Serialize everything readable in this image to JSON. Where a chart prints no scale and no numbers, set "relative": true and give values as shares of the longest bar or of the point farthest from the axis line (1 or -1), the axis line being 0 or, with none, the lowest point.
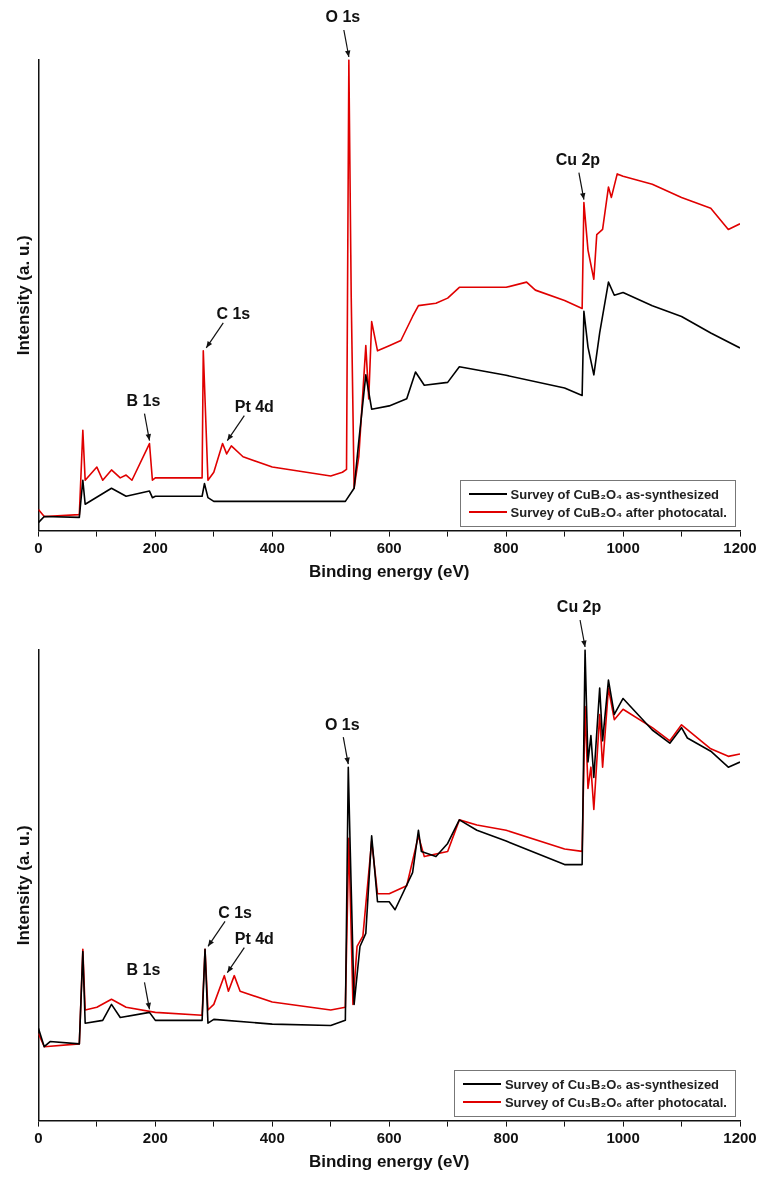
{
  "chart_data": [
    {
      "type": "line",
      "relative": true,
      "xlabel": "Binding energy (eV)",
      "ylabel": "Intensity (a. u.)",
      "xlim": [
        0,
        1200
      ],
      "xticks": [
        0,
        {
          "value": 100,
          "label": null
        },
        200,
        {
          "value": 300,
          "label": null
        },
        400,
        {
          "value": 500,
          "label": null
        },
        600,
        {
          "value": 700,
          "label": null
        },
        800,
        {
          "value": 900,
          "label": null
        },
        1000,
        {
          "value": 1100,
          "label": null
        },
        1200
      ],
      "legend": "bottom right",
      "series": [
        {
          "name": "Survey of CuB₂O₄ as-synthesized",
          "color": "#000000",
          "x": [
            0,
            10,
            70,
            76,
            80,
            125,
            150,
            190,
            195,
            200,
            280,
            284,
            290,
            300,
            500,
            525,
            540,
            548,
            560,
            570,
            600,
            630,
            645,
            660,
            700,
            720,
            800,
            900,
            930,
            933,
            940,
            950,
            960,
            975,
            985,
            1000,
            1050,
            1100,
            1150,
            1200
          ],
          "values": [
            0.017,
            0.03,
            0.028,
            0.107,
            0.056,
            0.09,
            0.073,
            0.084,
            0.07,
            0.073,
            0.073,
            0.1,
            0.07,
            0.062,
            0.062,
            0.062,
            0.09,
            0.19,
            0.331,
            0.258,
            0.265,
            0.28,
            0.337,
            0.309,
            0.315,
            0.348,
            0.33,
            0.303,
            0.287,
            0.466,
            0.39,
            0.331,
            0.42,
            0.528,
            0.5,
            0.506,
            0.478,
            0.455,
            0.42,
            0.388
          ]
        },
        {
          "name": "Survey of CuB₂O₄ after photocatal.",
          "color": "#e00000",
          "x": [
            0,
            10,
            70,
            76,
            80,
            100,
            110,
            125,
            140,
            150,
            160,
            190,
            195,
            200,
            280,
            282,
            290,
            300,
            315,
            322,
            330,
            350,
            400,
            500,
            520,
            527,
            531,
            535,
            540,
            548,
            560,
            565,
            570,
            580,
            600,
            620,
            640,
            650,
            680,
            700,
            720,
            800,
            835,
            850,
            900,
            930,
            933,
            940,
            950,
            955,
            965,
            975,
            980,
            990,
            1000,
            1050,
            1100,
            1150,
            1180,
            1200
          ],
          "values": [
            0.045,
            0.03,
            0.034,
            0.213,
            0.107,
            0.135,
            0.107,
            0.129,
            0.112,
            0.118,
            0.107,
            0.185,
            0.107,
            0.112,
            0.112,
            0.382,
            0.107,
            0.124,
            0.185,
            0.163,
            0.18,
            0.157,
            0.135,
            0.116,
            0.124,
            0.13,
            1.0,
            0.5,
            0.09,
            0.157,
            0.393,
            0.28,
            0.444,
            0.382,
            0.393,
            0.404,
            0.455,
            0.478,
            0.483,
            0.494,
            0.517,
            0.517,
            0.528,
            0.511,
            0.489,
            0.472,
            0.697,
            0.596,
            0.534,
            0.629,
            0.64,
            0.73,
            0.708,
            0.758,
            0.753,
            0.736,
            0.708,
            0.685,
            0.64,
            0.652
          ]
        }
      ],
      "annotations": [
        {
          "text": "B 1s",
          "x": 190,
          "y": 0.185
        },
        {
          "text": "C 1s",
          "x": 282,
          "y": 0.382
        },
        {
          "text": "Pt 4d",
          "x": 318,
          "y": 0.185
        },
        {
          "text": "O 1s",
          "x": 531,
          "y": 1.0
        },
        {
          "text": "Cu 2p",
          "x": 933,
          "y": 0.697
        }
      ]
    },
    {
      "type": "line",
      "relative": true,
      "xlabel": "Binding energy (eV)",
      "ylabel": "Intensity (a. u.)",
      "xlim": [
        0,
        1200
      ],
      "xticks": [
        0,
        {
          "value": 100,
          "label": null
        },
        200,
        {
          "value": 300,
          "label": null
        },
        400,
        {
          "value": 500,
          "label": null
        },
        600,
        {
          "value": 700,
          "label": null
        },
        800,
        {
          "value": 900,
          "label": null
        },
        1000,
        {
          "value": 1100,
          "label": null
        },
        1200
      ],
      "legend": "bottom right",
      "series": [
        {
          "name": "Survey of Cu₃B₂O₆ as-synthesized",
          "color": "#000000",
          "x": [
            0,
            10,
            20,
            70,
            76,
            80,
            110,
            125,
            140,
            190,
            200,
            280,
            285,
            290,
            300,
            400,
            500,
            525,
            530,
            533,
            540,
            550,
            560,
            570,
            580,
            600,
            610,
            640,
            650,
            655,
            680,
            700,
            720,
            750,
            800,
            900,
            930,
            935,
            940,
            945,
            950,
            960,
            965,
            975,
            985,
            1000,
            1050,
            1080,
            1100,
            1110,
            1150,
            1180,
            1200
          ],
          "values": [
            0.196,
            0.157,
            0.168,
            0.163,
            0.359,
            0.207,
            0.213,
            0.247,
            0.219,
            0.23,
            0.213,
            0.213,
            0.364,
            0.207,
            0.215,
            0.205,
            0.202,
            0.213,
            0.751,
            0.594,
            0.247,
            0.37,
            0.398,
            0.605,
            0.465,
            0.465,
            0.448,
            0.527,
            0.617,
            0.572,
            0.561,
            0.589,
            0.639,
            0.617,
            0.594,
            0.544,
            0.544,
            1.0,
            0.762,
            0.818,
            0.729,
            0.919,
            0.807,
            0.936,
            0.863,
            0.897,
            0.83,
            0.802,
            0.835,
            0.813,
            0.785,
            0.751,
            0.762
          ]
        },
        {
          "name": "Survey of Cu₃B₂O₆ after photocatal.",
          "color": "#e00000",
          "x": [
            0,
            10,
            70,
            76,
            80,
            100,
            125,
            150,
            200,
            280,
            285,
            290,
            300,
            318,
            325,
            335,
            345,
            400,
            500,
            525,
            531,
            538,
            545,
            555,
            570,
            580,
            600,
            630,
            650,
            660,
            700,
            720,
            750,
            800,
            900,
            930,
            935,
            940,
            945,
            950,
            960,
            965,
            975,
            985,
            1000,
            1050,
            1080,
            1100,
            1150,
            1180,
            1200
          ],
          "values": [
            0.185,
            0.157,
            0.163,
            0.364,
            0.235,
            0.241,
            0.258,
            0.241,
            0.23,
            0.224,
            0.364,
            0.235,
            0.247,
            0.308,
            0.275,
            0.308,
            0.275,
            0.252,
            0.235,
            0.241,
            0.6,
            0.247,
            0.37,
            0.392,
            0.594,
            0.482,
            0.482,
            0.499,
            0.605,
            0.561,
            0.572,
            0.639,
            0.628,
            0.617,
            0.577,
            0.572,
            0.88,
            0.706,
            0.751,
            0.661,
            0.863,
            0.751,
            0.919,
            0.852,
            0.874,
            0.835,
            0.807,
            0.841,
            0.79,
            0.774,
            0.779
          ]
        }
      ],
      "annotations": [
        {
          "text": "B 1s",
          "x": 190,
          "y": 0.23
        },
        {
          "text": "C 1s",
          "x": 285,
          "y": 0.364
        },
        {
          "text": "Pt 4d",
          "x": 318,
          "y": 0.308
        },
        {
          "text": "O 1s",
          "x": 530,
          "y": 0.751
        },
        {
          "text": "Cu 2p",
          "x": 935,
          "y": 1.0
        }
      ]
    }
  ]
}
